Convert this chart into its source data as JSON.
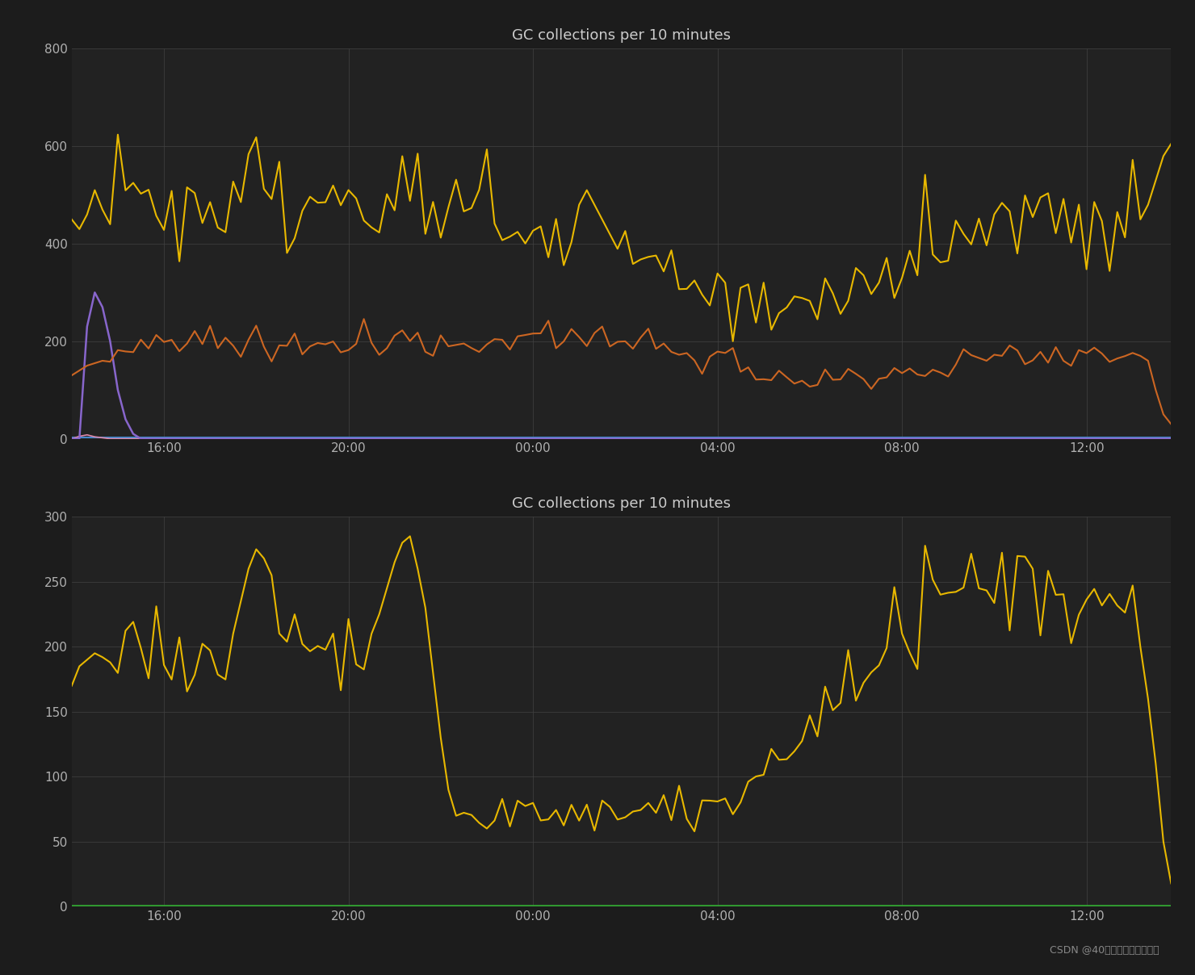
{
  "title": "GC collections per 10 minutes",
  "background_color": "#1c1c1c",
  "axes_bg_color": "#222222",
  "grid_color": "#404040",
  "text_color": "#b0b0b0",
  "title_color": "#cccccc",
  "watermark": "CSDN @40岁资深老架构师尼恩",
  "xtick_labels": [
    "16:00",
    "20:00",
    "00:00",
    "04:00",
    "08:00",
    "12:00"
  ],
  "plot1": {
    "ylim": [
      0,
      800
    ],
    "yticks": [
      0,
      200,
      400,
      600,
      800
    ],
    "yellow_color": "#e8b800",
    "orange_color": "#cc6622",
    "purple_color": "#8866cc",
    "blue_color": "#4488cc",
    "pink_color": "#dd88aa"
  },
  "plot2": {
    "ylim": [
      0,
      300
    ],
    "yticks": [
      0,
      50,
      100,
      150,
      200,
      250,
      300
    ],
    "yellow_color": "#e8b800",
    "green_color": "#33aa33"
  }
}
